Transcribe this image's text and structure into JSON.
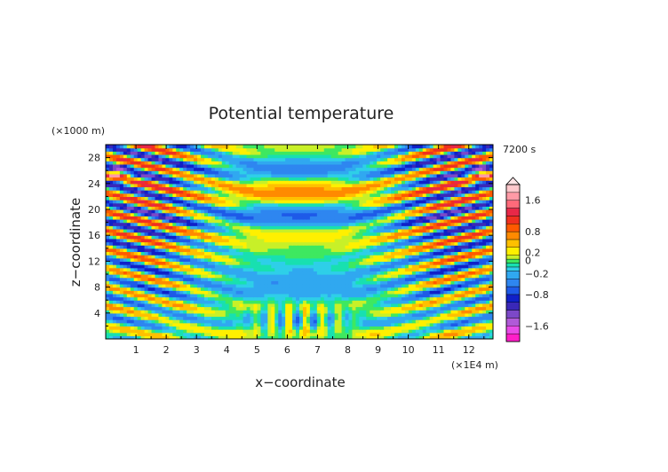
{
  "chart_data": {
    "type": "heatmap",
    "title": "Potential temperature",
    "xlabel": "x−coordinate",
    "ylabel": "z−coordinate",
    "x_unit": "(×1E4 m)",
    "y_unit": "(×1000 m)",
    "time_label": "7200 s",
    "xlim": [
      0,
      12.8
    ],
    "ylim": [
      0,
      30
    ],
    "x_ticks": [
      "1",
      "2",
      "3",
      "4",
      "5",
      "6",
      "7",
      "8",
      "9",
      "10",
      "11",
      "12"
    ],
    "y_ticks": [
      "4",
      "8",
      "12",
      "16",
      "20",
      "24",
      "28"
    ],
    "colorbar": {
      "range": [
        -2.0,
        2.0
      ],
      "tick_labels": [
        "1.6",
        "0.8",
        "0.2",
        "0",
        "−0.2",
        "−0.8",
        "−1.6"
      ],
      "tick_values": [
        1.6,
        0.8,
        0.2,
        0,
        -0.2,
        -0.8,
        -1.6
      ],
      "extend": "max",
      "levels": [
        {
          "lo": -2.0,
          "color": "#ff1ec8"
        },
        {
          "lo": -1.8,
          "color": "#e84be8"
        },
        {
          "lo": -1.6,
          "color": "#b05ad8"
        },
        {
          "lo": -1.4,
          "color": "#7c48c8"
        },
        {
          "lo": -1.2,
          "color": "#3a28b8"
        },
        {
          "lo": -1.0,
          "color": "#1020c8"
        },
        {
          "lo": -0.8,
          "color": "#1e5ae8"
        },
        {
          "lo": -0.6,
          "color": "#2e86f0"
        },
        {
          "lo": -0.4,
          "color": "#30a8f0"
        },
        {
          "lo": -0.2,
          "color": "#2ecfe8"
        },
        {
          "lo": -0.1,
          "color": "#18e0b0"
        },
        {
          "lo": 0.0,
          "color": "#3ee860"
        },
        {
          "lo": 0.1,
          "color": "#c8f028"
        },
        {
          "lo": 0.2,
          "color": "#fff000"
        },
        {
          "lo": 0.4,
          "color": "#ffc000"
        },
        {
          "lo": 0.6,
          "color": "#ff8a00"
        },
        {
          "lo": 0.8,
          "color": "#ff5a00"
        },
        {
          "lo": 1.0,
          "color": "#f03020"
        },
        {
          "lo": 1.2,
          "color": "#e82848"
        },
        {
          "lo": 1.4,
          "color": "#ff6a7a"
        },
        {
          "lo": 1.6,
          "color": "#ff9aa6"
        },
        {
          "lo": 1.8,
          "color": "#ffc8cc"
        }
      ]
    }
  }
}
